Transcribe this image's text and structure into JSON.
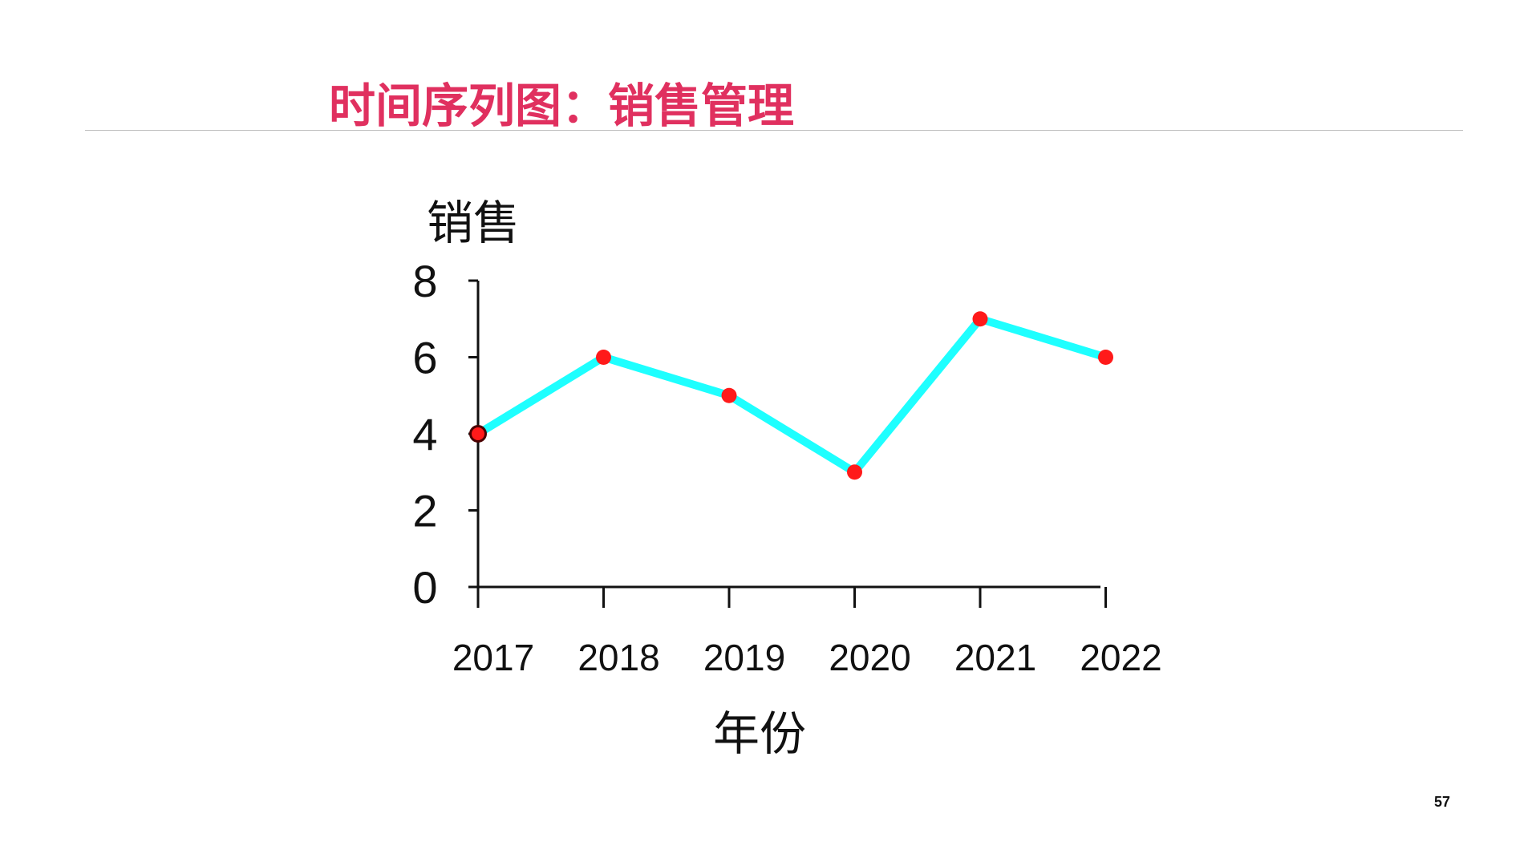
{
  "slide": {
    "title": "时间序列图：销售管理",
    "page_number": "57"
  },
  "colors": {
    "title": "#e0305f",
    "line": "#1effff",
    "marker": "#ff1a1a",
    "axis": "#111111"
  },
  "chart_data": {
    "type": "line",
    "title": "",
    "xlabel": "年份",
    "ylabel": "销售",
    "x": [
      "2017",
      "2018",
      "2019",
      "2020",
      "2021",
      "2022"
    ],
    "series": [
      {
        "values": [
          4,
          6,
          5,
          3,
          7,
          6
        ]
      }
    ],
    "ylim": [
      0,
      8
    ],
    "yticks": [
      0,
      2,
      4,
      6,
      8
    ],
    "grid": false,
    "markers": true
  }
}
